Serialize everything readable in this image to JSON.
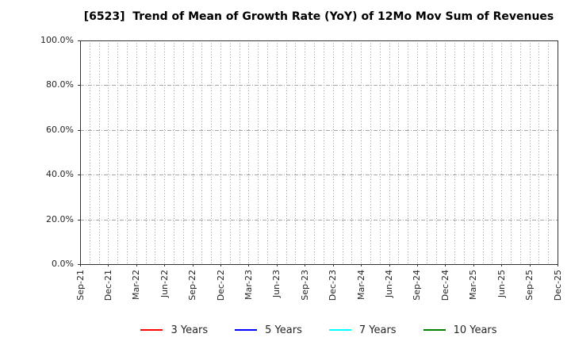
{
  "chart_data": {
    "type": "line",
    "title": "[6523]  Trend of Mean of Growth Rate (YoY) of 12Mo Mov Sum of Revenues",
    "x_tick_labels": [
      "Sep-21",
      "Dec-21",
      "Mar-22",
      "Jun-22",
      "Sep-22",
      "Dec-22",
      "Mar-23",
      "Jun-23",
      "Sep-23",
      "Dec-23",
      "Mar-24",
      "Jun-24",
      "Sep-24",
      "Dec-24",
      "Mar-25",
      "Jun-25",
      "Sep-25",
      "Dec-25"
    ],
    "months_per_labeled_tick": 3,
    "x_minor_grid": "monthly",
    "y_tick_labels": [
      "0.0%",
      "20.0%",
      "40.0%",
      "60.0%",
      "80.0%",
      "100.0%"
    ],
    "ylim": [
      0,
      100
    ],
    "y_major_step": 20,
    "grid": true,
    "legend_position": "bottom",
    "series": [
      {
        "name": "3 Years",
        "color": "#ff0000",
        "values": []
      },
      {
        "name": "5 Years",
        "color": "#0000ff",
        "values": []
      },
      {
        "name": "7 Years",
        "color": "#00ffff",
        "values": []
      },
      {
        "name": "10 Years",
        "color": "#008000",
        "values": []
      }
    ],
    "colors": {
      "background": "#ffffff",
      "axis_frame": "#333333",
      "minor_grid": "#999999",
      "major_grid": "#a6a6a6",
      "tick_text": "#262626",
      "title_text": "#000000"
    }
  }
}
